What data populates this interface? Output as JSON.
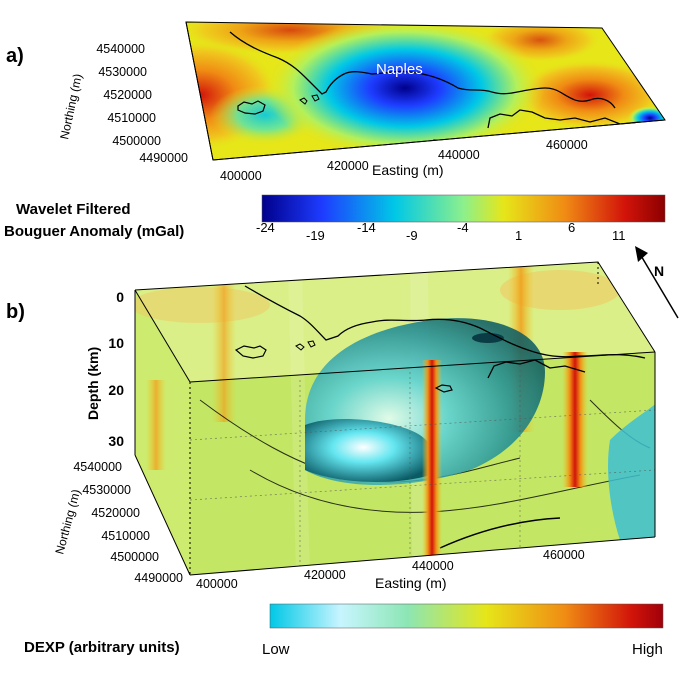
{
  "panel_a": {
    "label": "a)",
    "city_label": "Naples",
    "y_axis_title": "Northing (m)",
    "x_axis_title": "Easting (m)",
    "y_ticks": [
      "4540000",
      "4530000",
      "4520000",
      "4510000",
      "4500000",
      "4490000"
    ],
    "x_ticks": [
      "400000",
      "420000",
      "440000",
      "460000"
    ]
  },
  "colorbar_a": {
    "title_line1": "Wavelet Filtered",
    "title_line2": "Bouguer Anomaly (mGal)",
    "ticks": [
      "-24",
      "-19",
      "-14",
      "-9",
      "-4",
      "1",
      "6",
      "11"
    ]
  },
  "north_arrow": {
    "label": "N"
  },
  "panel_b": {
    "label": "b)",
    "depth_axis_title": "Depth (km)",
    "depth_ticks": [
      "0",
      "10",
      "20",
      "30"
    ],
    "y_axis_title": "Northing (m)",
    "x_axis_title": "Easting (m)",
    "y_ticks": [
      "4540000",
      "4530000",
      "4520000",
      "4510000",
      "4500000",
      "4490000"
    ],
    "x_ticks": [
      "400000",
      "420000",
      "440000",
      "460000"
    ]
  },
  "colorbar_b": {
    "title": "DEXP (arbitrary units)",
    "low_label": "Low",
    "high_label": "High"
  },
  "colors": {
    "blue_dark": "#00008b",
    "blue": "#1e3cff",
    "cyan": "#00c8e6",
    "yellow": "#e6e619",
    "orange": "#f08c14",
    "red": "#d2140a",
    "dark_red": "#8b0000"
  }
}
